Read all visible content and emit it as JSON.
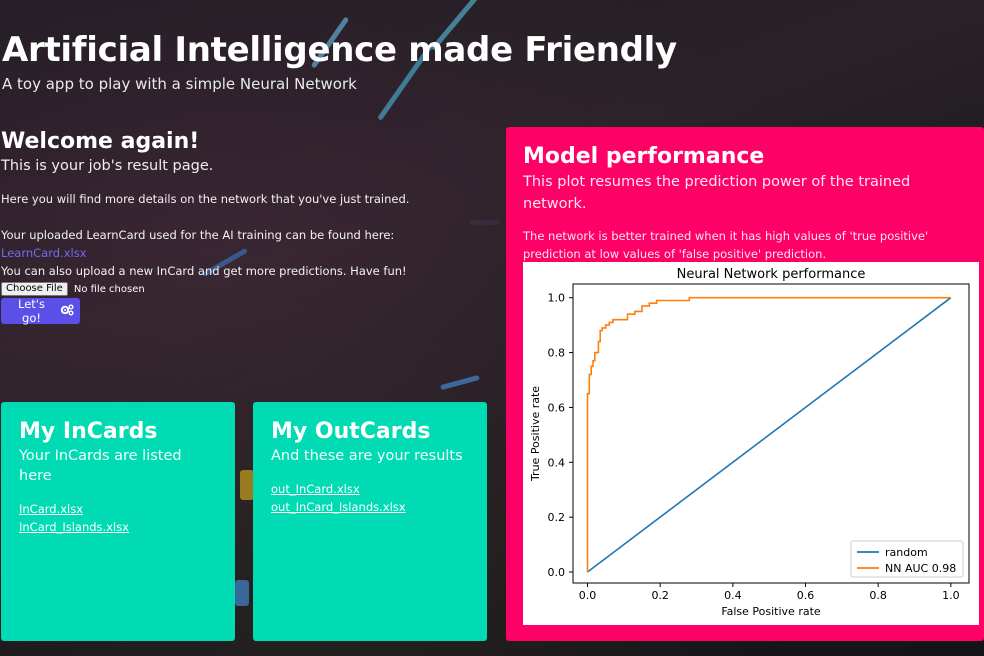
{
  "header": {
    "title": "Artificial Intelligence made Friendly",
    "subtitle": "A toy app to play with a simple Neural Network"
  },
  "welcome": {
    "heading": "Welcome again!",
    "lead": "This is your job's result page.",
    "details": "Here you will find more details on the network that you've just trained.",
    "learncard_prefix": "Your uploaded LearnCard used for the AI training can be found here:",
    "learncard_link": "LearnCard.xlsx",
    "upload_text": "You can also upload a new InCard and get more predictions. Have fun!",
    "choose_file_label": "Choose File",
    "no_file_text": "No file chosen",
    "go_button_label": "Let's go!",
    "go_button_icon": "gears-icon"
  },
  "incards": {
    "title": "My InCards",
    "subtitle": "Your InCards are listed here",
    "files": [
      "InCard.xlsx",
      "InCard_Islands.xlsx"
    ]
  },
  "outcards": {
    "title": "My OutCards",
    "subtitle": "And these are your results",
    "files": [
      "out_InCard.xlsx",
      "out_InCard_Islands.xlsx"
    ]
  },
  "performance": {
    "title": "Model performance",
    "subtitle": "This plot resumes the prediction power of the trained network.",
    "note": "The network is better trained when it has high values of 'true positive' prediction at low values of 'false positive' prediction."
  },
  "colors": {
    "card_teal": "#00dbb4",
    "card_pink": "#ff0066",
    "button": "#5a50e8",
    "link": "#6f6cf0",
    "series_random": "#1f77b4",
    "series_nn": "#ff7f0e"
  },
  "chart_data": {
    "type": "line",
    "title": "Neural Network performance",
    "xlabel": "False Positive rate",
    "ylabel": "True Positive rate",
    "xlim": [
      -0.04,
      1.05
    ],
    "ylim": [
      -0.04,
      1.05
    ],
    "xticks": [
      0.0,
      0.2,
      0.4,
      0.6,
      0.8,
      1.0
    ],
    "yticks": [
      0.0,
      0.2,
      0.4,
      0.6,
      0.8,
      1.0
    ],
    "tick_labels_x": [
      "0.0",
      "0.2",
      "0.4",
      "0.6",
      "0.8",
      "1.0"
    ],
    "tick_labels_y": [
      "0.0",
      "0.2",
      "0.4",
      "0.6",
      "0.8",
      "1.0"
    ],
    "grid": false,
    "legend_position": "lower-right",
    "series": [
      {
        "name": "random",
        "color": "#1f77b4",
        "x": [
          0.0,
          1.0
        ],
        "y": [
          0.0,
          1.0
        ]
      },
      {
        "name": "NN AUC 0.98",
        "color": "#ff7f0e",
        "x": [
          0.0,
          0.0,
          0.005,
          0.005,
          0.01,
          0.01,
          0.015,
          0.015,
          0.02,
          0.02,
          0.03,
          0.03,
          0.035,
          0.035,
          0.04,
          0.04,
          0.05,
          0.05,
          0.06,
          0.06,
          0.07,
          0.07,
          0.09,
          0.09,
          0.11,
          0.11,
          0.13,
          0.13,
          0.15,
          0.15,
          0.17,
          0.17,
          0.19,
          0.19,
          0.28,
          0.28,
          0.5,
          0.8,
          1.0
        ],
        "y": [
          0.0,
          0.65,
          0.65,
          0.72,
          0.72,
          0.75,
          0.75,
          0.77,
          0.77,
          0.8,
          0.8,
          0.84,
          0.84,
          0.88,
          0.88,
          0.89,
          0.89,
          0.9,
          0.9,
          0.91,
          0.91,
          0.92,
          0.92,
          0.92,
          0.92,
          0.94,
          0.94,
          0.95,
          0.95,
          0.97,
          0.97,
          0.98,
          0.98,
          0.99,
          0.99,
          1.0,
          1.0,
          1.0,
          1.0
        ]
      }
    ]
  }
}
